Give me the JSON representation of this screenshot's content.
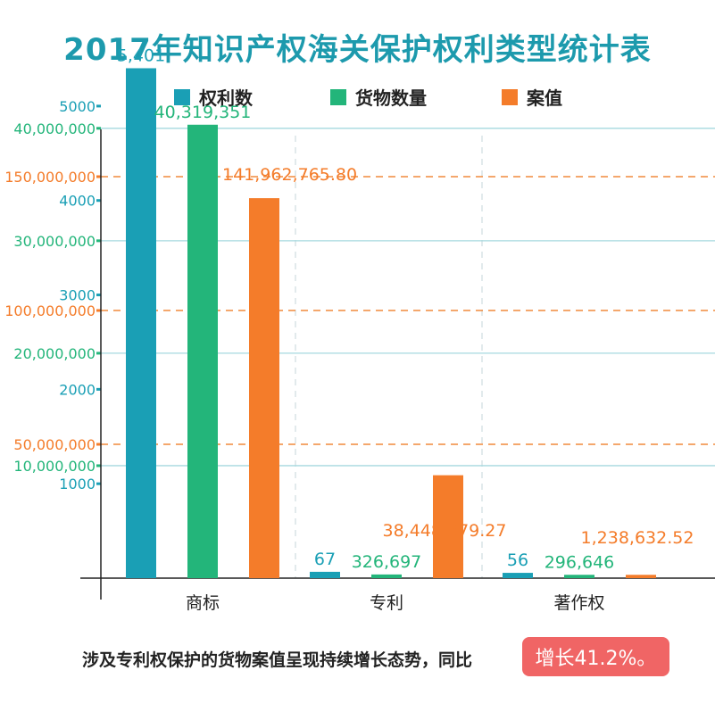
{
  "title": "2017年知识产权海关保护权利类型统计表",
  "legend": [
    {
      "label": "权利数",
      "color": "#1a9fb5"
    },
    {
      "label": "货物数量",
      "color": "#23b57a"
    },
    {
      "label": "案值",
      "color": "#f47c2a"
    }
  ],
  "chart_data": {
    "type": "bar",
    "categories": [
      "商标",
      "专利",
      "著作权"
    ],
    "series": [
      {
        "name": "权利数",
        "color": "#1a9fb5",
        "values": [
          5401,
          67,
          56
        ],
        "labels": [
          "5,401",
          "67",
          "56"
        ],
        "ylim": [
          0,
          5500
        ],
        "ticks": [
          1000,
          2000,
          3000,
          4000,
          5000
        ],
        "tick_labels": [
          "1000",
          "2000",
          "3000",
          "4000",
          "5000"
        ]
      },
      {
        "name": "货物数量",
        "color": "#23b57a",
        "values": [
          40319351,
          326697,
          296646
        ],
        "labels": [
          "40,319,351",
          "326,697",
          "296,646"
        ],
        "ylim": [
          0,
          43000000
        ],
        "ticks": [
          10000000,
          20000000,
          30000000,
          40000000
        ],
        "tick_labels": [
          "10,000,000",
          "20,000,000",
          "30,000,000",
          "40,000,000"
        ]
      },
      {
        "name": "案值",
        "color": "#f47c2a",
        "values": [
          141962765.8,
          38448379.27,
          1238632.52
        ],
        "labels": [
          "141,962,765.80",
          "38,448,379.27",
          "1,238,632.52"
        ],
        "ylim": [
          0,
          175000000
        ],
        "ticks": [
          50000000,
          100000000,
          150000000
        ],
        "tick_labels": [
          "50,000,000",
          "100,000,000",
          "150,000,000"
        ]
      }
    ],
    "grid": true,
    "legend_position": "top"
  },
  "note": {
    "text": "涉及专利权保护的货物案值呈现持续增长态势，同比",
    "highlight": "增长41.2%。"
  }
}
